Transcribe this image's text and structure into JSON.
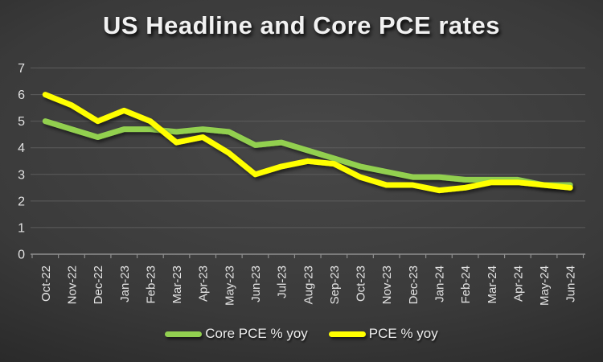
{
  "chart_data": {
    "type": "line",
    "title": "US Headline and Core PCE rates",
    "categories": [
      "Oct-22",
      "Nov-22",
      "Dec-22",
      "Jan-23",
      "Feb-23",
      "Mar-23",
      "Apr-23",
      "May-23",
      "Jun-23",
      "Jul-23",
      "Aug-23",
      "Sep-23",
      "Oct-23",
      "Nov-23",
      "Dec-23",
      "Jan-24",
      "Feb-24",
      "Mar-24",
      "Apr-24",
      "May-24",
      "Jun-24"
    ],
    "series": [
      {
        "name": "Core PCE % yoy",
        "color": "#92d050",
        "values": [
          5.0,
          4.7,
          4.4,
          4.7,
          4.7,
          4.6,
          4.7,
          4.6,
          4.1,
          4.2,
          3.9,
          3.6,
          3.3,
          3.1,
          2.9,
          2.9,
          2.8,
          2.8,
          2.8,
          2.6,
          2.6
        ]
      },
      {
        "name": "PCE % yoy",
        "color": "#ffff00",
        "values": [
          6.0,
          5.6,
          5.0,
          5.4,
          5.0,
          4.2,
          4.4,
          3.8,
          3.0,
          3.3,
          3.5,
          3.4,
          2.9,
          2.6,
          2.6,
          2.4,
          2.5,
          2.7,
          2.7,
          2.6,
          2.5
        ]
      }
    ],
    "xlabel": "",
    "ylabel": "",
    "ylim": [
      0,
      7
    ],
    "yticks": [
      0,
      1,
      2,
      3,
      4,
      5,
      6,
      7
    ],
    "grid": true,
    "legend_position": "bottom",
    "x_tick_rotation": 90
  },
  "style_colors": {
    "background_center": "#484848",
    "background_edge": "#131313",
    "gridline": "#5c5c5c",
    "axis_line": "#8f8f8f",
    "tick_label": "#e2e2e2",
    "title_text": "#f1f1f1"
  }
}
